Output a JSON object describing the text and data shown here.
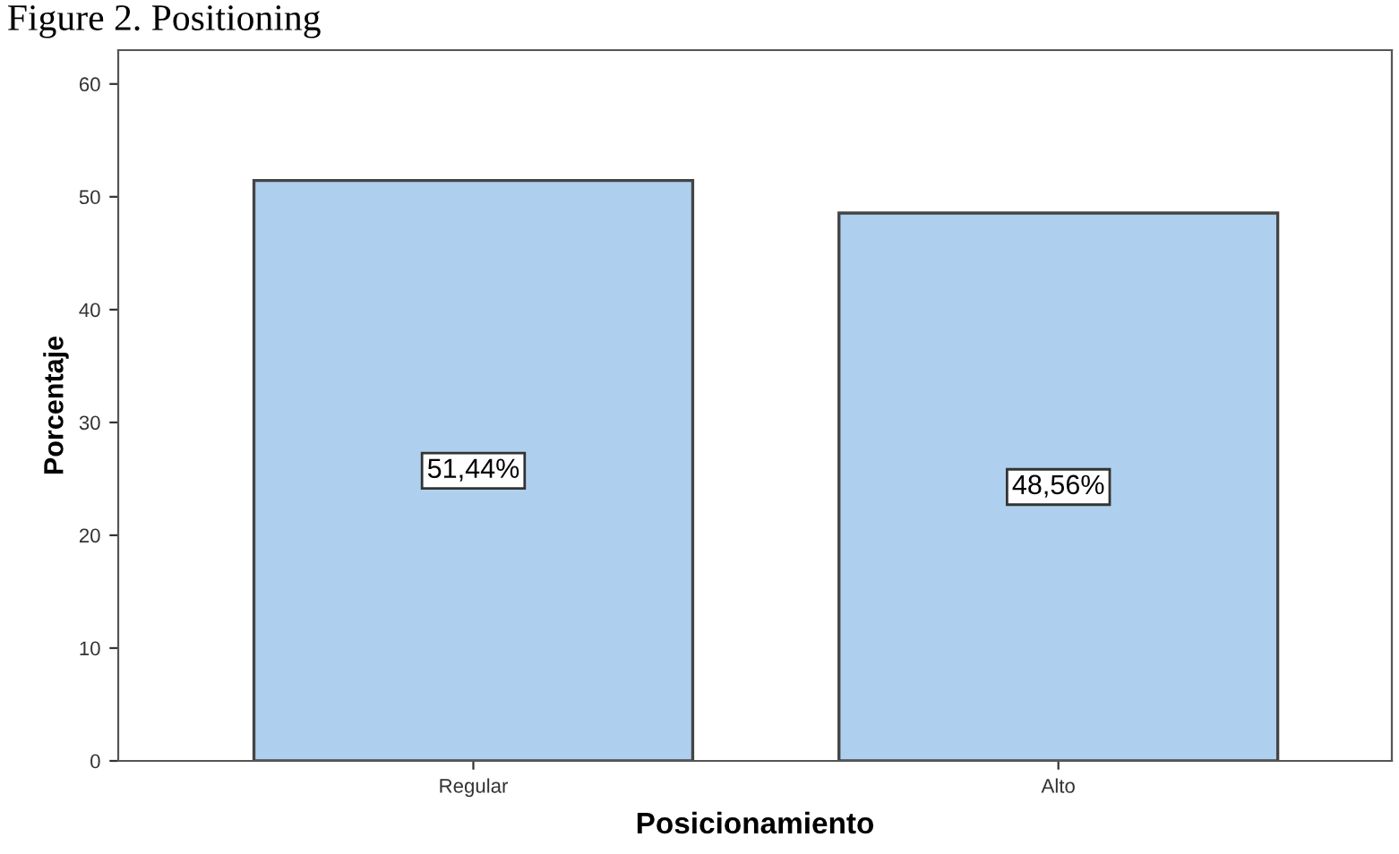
{
  "chart_data": {
    "type": "bar",
    "title": "Figure 2. Positioning",
    "xlabel": "Posicionamiento",
    "ylabel": "Porcentaje",
    "categories": [
      "Regular",
      "Alto"
    ],
    "values": [
      51.44,
      48.56
    ],
    "value_labels": [
      "51,44%",
      "48,56%"
    ],
    "color": "#aed0ee",
    "ylim": [
      0,
      63
    ],
    "yticks": [
      0,
      10,
      20,
      30,
      40,
      50,
      60
    ],
    "grid": false,
    "legend": false
  }
}
